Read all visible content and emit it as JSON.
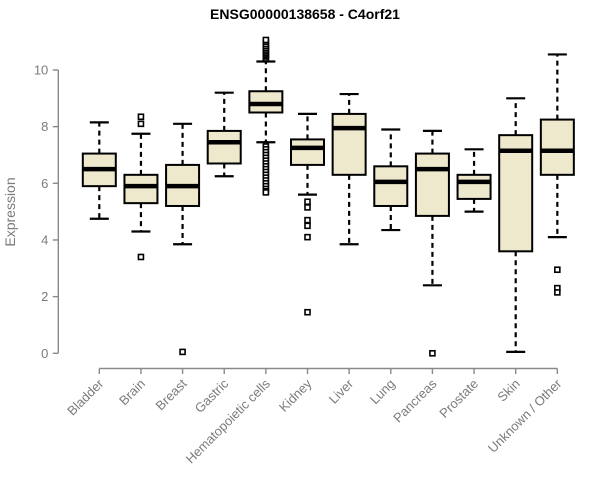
{
  "chart_data": {
    "type": "boxplot",
    "title": "ENSG00000138658 - C4orf21",
    "ylabel": "Expression",
    "xlabel": "",
    "ylim": [
      0,
      11.1
    ],
    "yticks": [
      0,
      2,
      4,
      6,
      8,
      10
    ],
    "grid": false,
    "legend": null,
    "categories": [
      "Bladder",
      "Brain",
      "Breast",
      "Gastric",
      "Hematopoietic cells",
      "Kidney",
      "Liver",
      "Lung",
      "Pancreas",
      "Prostate",
      "Skin",
      "Unknown / Other"
    ],
    "series": [
      {
        "name": "Bladder",
        "whisker_low": 4.75,
        "q1": 5.9,
        "median": 6.5,
        "q3": 7.05,
        "whisker_high": 8.15,
        "outliers": []
      },
      {
        "name": "Brain",
        "whisker_low": 4.3,
        "q1": 5.3,
        "median": 5.9,
        "q3": 6.3,
        "whisker_high": 7.75,
        "outliers": [
          8.35,
          8.1,
          3.4
        ]
      },
      {
        "name": "Breast",
        "whisker_low": 3.85,
        "q1": 5.2,
        "median": 5.9,
        "q3": 6.65,
        "whisker_high": 8.1,
        "outliers": [
          0.05
        ]
      },
      {
        "name": "Gastric",
        "whisker_low": 6.25,
        "q1": 6.7,
        "median": 7.45,
        "q3": 7.85,
        "whisker_high": 9.2,
        "outliers": []
      },
      {
        "name": "Hematopoietic cells",
        "whisker_low": 7.45,
        "q1": 8.5,
        "median": 8.8,
        "q3": 9.25,
        "whisker_high": 10.3,
        "outliers": [
          10.38,
          10.44,
          10.5,
          10.55,
          10.6,
          10.66,
          10.72,
          10.78,
          10.85,
          10.92,
          11.0,
          11.06,
          7.3,
          7.2,
          7.1,
          7.0,
          6.9,
          6.8,
          6.7,
          6.6,
          6.5,
          6.4,
          6.3,
          6.2,
          6.1,
          6.0,
          5.9,
          5.8,
          5.72,
          5.68
        ]
      },
      {
        "name": "Kidney",
        "whisker_low": 5.6,
        "q1": 6.65,
        "median": 7.25,
        "q3": 7.55,
        "whisker_high": 8.45,
        "outliers": [
          5.35,
          5.15,
          4.7,
          4.5,
          4.1,
          1.45
        ]
      },
      {
        "name": "Liver",
        "whisker_low": 3.85,
        "q1": 6.3,
        "median": 7.95,
        "q3": 8.45,
        "whisker_high": 9.15,
        "outliers": []
      },
      {
        "name": "Lung",
        "whisker_low": 4.35,
        "q1": 5.2,
        "median": 6.05,
        "q3": 6.6,
        "whisker_high": 7.9,
        "outliers": []
      },
      {
        "name": "Pancreas",
        "whisker_low": 2.4,
        "q1": 4.85,
        "median": 6.5,
        "q3": 7.05,
        "whisker_high": 7.85,
        "outliers": [
          0.0
        ]
      },
      {
        "name": "Prostate",
        "whisker_low": 5.0,
        "q1": 5.45,
        "median": 6.05,
        "q3": 6.3,
        "whisker_high": 7.2,
        "outliers": []
      },
      {
        "name": "Skin",
        "whisker_low": 0.05,
        "q1": 3.6,
        "median": 7.15,
        "q3": 7.7,
        "whisker_high": 9.0,
        "outliers": []
      },
      {
        "name": "Unknown / Other",
        "whisker_low": 4.1,
        "q1": 6.3,
        "median": 7.15,
        "q3": 8.25,
        "whisker_high": 10.55,
        "outliers": [
          2.95,
          2.3,
          2.15
        ]
      }
    ],
    "colors": {
      "box_fill": "#EEE8CD",
      "box_border": "#000000",
      "median": "#000000",
      "whisker": "#000000",
      "outlier_stroke": "#000000",
      "outlier_fill": "#ffffff",
      "axis_line": "#898989",
      "tick_text": "#7b7b7b",
      "title_text": "#000000"
    }
  }
}
